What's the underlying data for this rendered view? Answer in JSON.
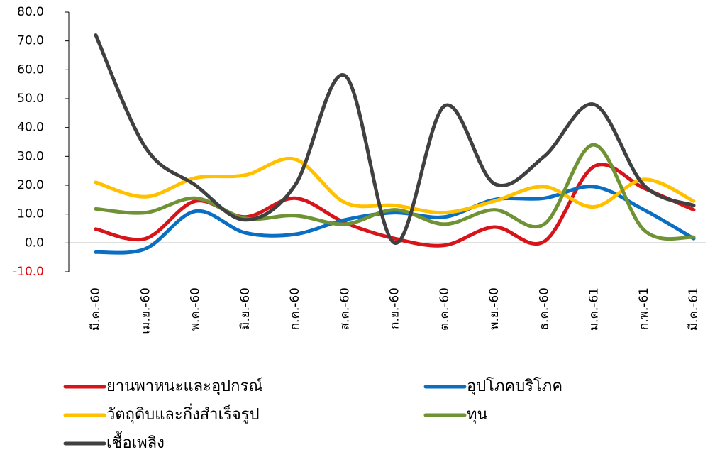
{
  "chart_data": {
    "type": "line",
    "categories": [
      "มี.ค.-60",
      "เม.ย.-60",
      "พ.ค.-60",
      "มิ.ย.-60",
      "ก.ค.-60",
      "ส.ค.-60",
      "ก.ย.-60",
      "ต.ค.-60",
      "พ.ย.-60",
      "ธ.ค.-60",
      "ม.ค.-61",
      "ก.พ.-61",
      "มี.ค.-61"
    ],
    "series": [
      {
        "name": "ยานพาหนะและอุปกรณ์",
        "color": "#d7141a",
        "values": [
          4.8,
          1.5,
          14.5,
          9,
          15.5,
          7,
          1.5,
          -0.8,
          5.5,
          0.5,
          26.5,
          19,
          11.5
        ]
      },
      {
        "name": "อุปโภคบริโภค",
        "color": "#0a6fc2",
        "values": [
          -3.2,
          -2,
          11,
          3.5,
          3,
          8,
          10.5,
          9,
          15,
          15.5,
          19.5,
          11.5,
          1.5
        ]
      },
      {
        "name": "วัตถุดิบและกึ่งสำเร็จรูป",
        "color": "#ffc000",
        "values": [
          21,
          16,
          22.5,
          23.5,
          29,
          14,
          13,
          10.5,
          14.5,
          19.5,
          12.5,
          22,
          14.5
        ]
      },
      {
        "name": "ทุน",
        "color": "#6e9234",
        "values": [
          11.8,
          10.5,
          15.5,
          8.5,
          9.5,
          6.5,
          11.5,
          6.5,
          11.5,
          6.5,
          34,
          4.5,
          2
        ]
      },
      {
        "name": "เชื้อเพลิง",
        "color": "#404040",
        "values": [
          72,
          33,
          20,
          8,
          20,
          58,
          0,
          47.5,
          20.5,
          30,
          48,
          20,
          13
        ]
      }
    ],
    "ylim": [
      -10,
      80
    ],
    "yticks": [
      {
        "value": -10,
        "label": "-10.0"
      },
      {
        "value": 0,
        "label": "0.0"
      },
      {
        "value": 10,
        "label": "10.0"
      },
      {
        "value": 20,
        "label": "20.0"
      },
      {
        "value": 30,
        "label": "30.0"
      },
      {
        "value": 40,
        "label": "40.0"
      },
      {
        "value": 50,
        "label": "50.0"
      },
      {
        "value": 60,
        "label": "60.0"
      },
      {
        "value": 70,
        "label": "70.0"
      },
      {
        "value": 80,
        "label": "80.0"
      }
    ],
    "grid": false
  }
}
